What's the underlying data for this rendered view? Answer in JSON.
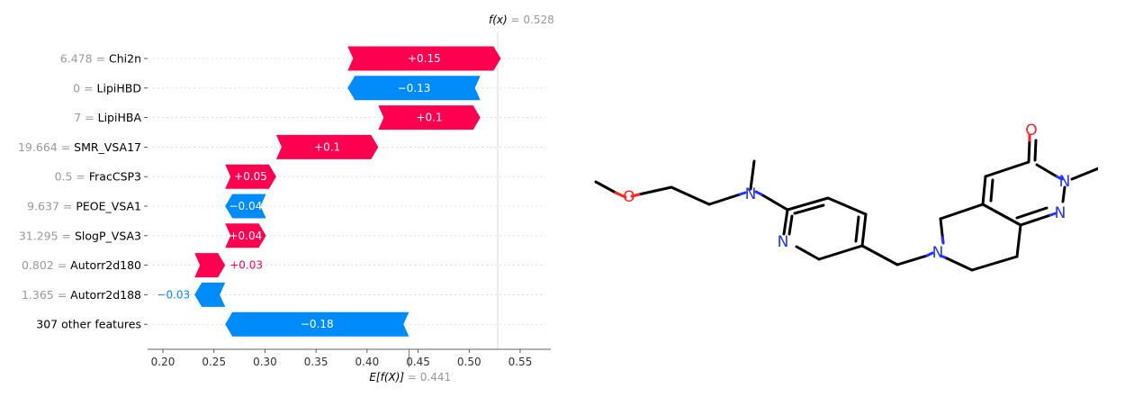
{
  "chart_data": {
    "type": "waterfall",
    "fx_label": "f(x)",
    "fx_value_text": "= 0.528",
    "fx": 0.528,
    "ex_label": "E[f(X)]",
    "ex_value_text": "= 0.441",
    "ex": 0.441,
    "xlim": [
      0.185,
      0.58
    ],
    "x_ticks": [
      0.2,
      0.25,
      0.3,
      0.35,
      0.4,
      0.45,
      0.5,
      0.55
    ],
    "x_tick_labels": [
      "0.20",
      "0.25",
      "0.30",
      "0.35",
      "0.40",
      "0.45",
      "0.50",
      "0.55"
    ],
    "features": [
      {
        "value": "6.478",
        "name": "Chi2n",
        "shap": 0.15,
        "label": "+0.15"
      },
      {
        "value": "0",
        "name": "LipiHBD",
        "shap": -0.13,
        "label": "−0.13"
      },
      {
        "value": "7",
        "name": "LipiHBA",
        "shap": 0.1,
        "label": "+0.1"
      },
      {
        "value": "19.664",
        "name": "SMR_VSA17",
        "shap": 0.1,
        "label": "+0.1"
      },
      {
        "value": "0.5",
        "name": "FracCSP3",
        "shap": 0.05,
        "label": "+0.05"
      },
      {
        "value": "9.637",
        "name": "PEOE_VSA1",
        "shap": -0.04,
        "label": "−0.04"
      },
      {
        "value": "31.295",
        "name": "SlogP_VSA3",
        "shap": 0.04,
        "label": "+0.04"
      },
      {
        "value": "0.802",
        "name": "Autorr2d180",
        "shap": 0.03,
        "label": "+0.03"
      },
      {
        "value": "1.365",
        "name": "Autorr2d188",
        "shap": -0.03,
        "label": "−0.03"
      },
      {
        "value": "",
        "name": "307 other features",
        "shap": -0.18,
        "label": "−0.18"
      }
    ],
    "colors": {
      "positive": "#ff0051",
      "negative": "#008bfb",
      "axis": "#333333",
      "grid": "#cccccc",
      "muted": "#999999"
    }
  },
  "molecule": {
    "atom_labels": {
      "oxygen_ether": "O",
      "oxygen_carbonyl": "O",
      "n_amine": "N",
      "n_pyridine": "N",
      "n_ring": "N",
      "n_pyridazinone": "N",
      "n_imine": "N"
    },
    "colors": {
      "bond": "#000000",
      "nitrogen": "#2233ff",
      "oxygen": "#ff2020"
    }
  }
}
